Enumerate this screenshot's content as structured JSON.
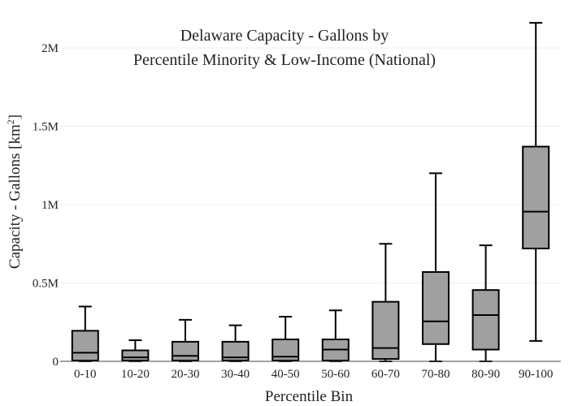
{
  "chart_data": {
    "type": "box",
    "title_lines": [
      "Delaware Capacity - Gallons by",
      "Percentile Minority & Low-Income (National)"
    ],
    "xlabel": "Percentile Bin",
    "ylabel_main": "Capacity - Gallons  [km",
    "ylabel_sup": "2",
    "ylabel_end": "]",
    "ylim": [
      0,
      2150000
    ],
    "yticks": [
      0,
      500000,
      1000000,
      1500000,
      2000000
    ],
    "ytick_labels": [
      "0",
      "0.5M",
      "1M",
      "1.5M",
      "2M"
    ],
    "grid": true,
    "box_color": "#a0a0a0",
    "categories": [
      "0-10",
      "10-20",
      "20-30",
      "30-40",
      "40-50",
      "50-60",
      "60-70",
      "70-80",
      "80-90",
      "90-100"
    ],
    "boxes": [
      {
        "min": 0,
        "q1": 5000,
        "median": 55000,
        "q3": 195000,
        "max": 350000
      },
      {
        "min": 0,
        "q1": 5000,
        "median": 25000,
        "q3": 70000,
        "max": 135000
      },
      {
        "min": 0,
        "q1": 5000,
        "median": 35000,
        "q3": 125000,
        "max": 265000
      },
      {
        "min": 0,
        "q1": 5000,
        "median": 25000,
        "q3": 125000,
        "max": 230000
      },
      {
        "min": 0,
        "q1": 5000,
        "median": 30000,
        "q3": 140000,
        "max": 285000
      },
      {
        "min": 0,
        "q1": 5000,
        "median": 75000,
        "q3": 140000,
        "max": 325000
      },
      {
        "min": 0,
        "q1": 15000,
        "median": 85000,
        "q3": 380000,
        "max": 750000
      },
      {
        "min": 0,
        "q1": 110000,
        "median": 255000,
        "q3": 570000,
        "max": 1200000
      },
      {
        "min": 0,
        "q1": 75000,
        "median": 295000,
        "q3": 455000,
        "max": 740000
      },
      {
        "min": 130000,
        "q1": 720000,
        "median": 955000,
        "q3": 1370000,
        "max": 2160000
      }
    ]
  }
}
